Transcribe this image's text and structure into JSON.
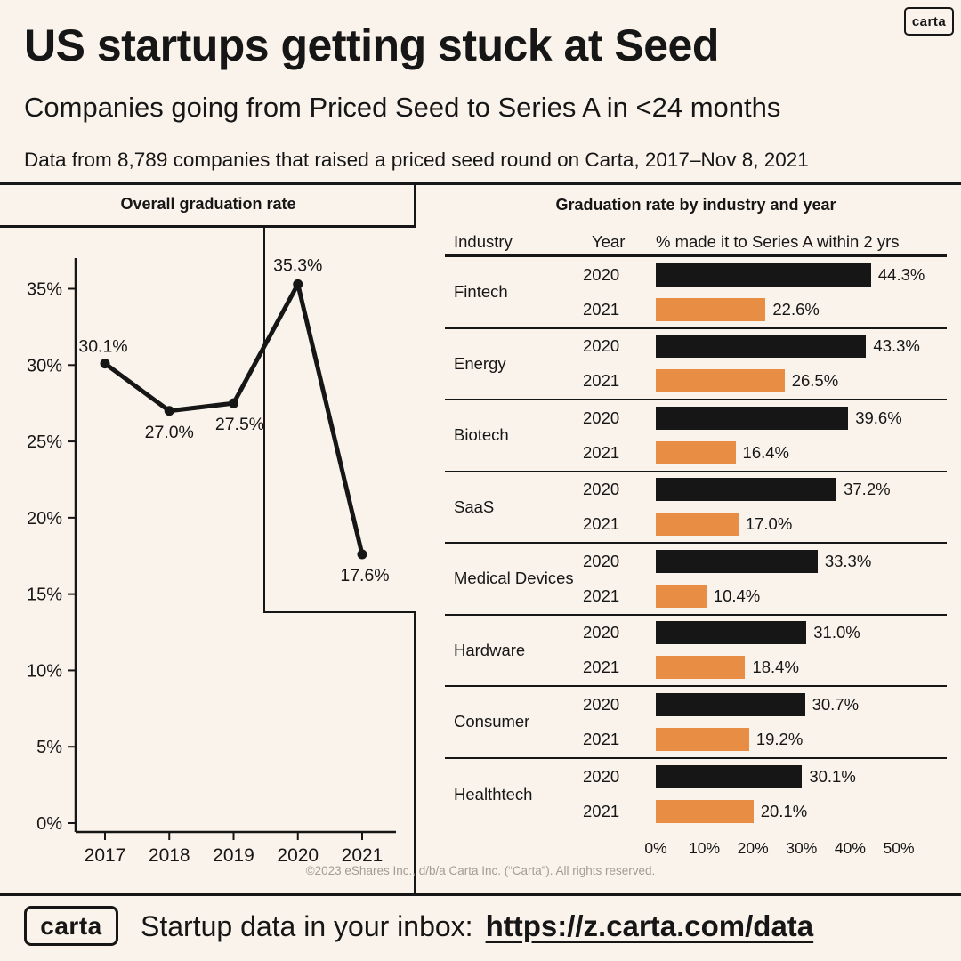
{
  "theme": {
    "background": "#faf3eb",
    "ink": "#161616",
    "orange": "#e78d44",
    "muted_gray": "#a39c92"
  },
  "header": {
    "logo_text": "carta",
    "title": "US startups getting stuck at Seed",
    "subtitle": "Companies going from Priced Seed to Series A in <24 months",
    "note": "Data from 8,789 companies that raised a priced seed round on Carta, 2017–Nov 8, 2021"
  },
  "footer": {
    "copyright": "©2023 eShares Inc., d/b/a Carta Inc. (“Carta”). All rights reserved.",
    "logo_text": "carta",
    "cta": "Startup data in your inbox:",
    "link_text": "https://z.carta.com/data"
  },
  "chart_data": [
    {
      "type": "line",
      "title": "Overall graduation rate",
      "x": [
        "2017",
        "2018",
        "2019",
        "2020",
        "2021"
      ],
      "values": [
        30.1,
        27.0,
        27.5,
        35.3,
        17.6
      ],
      "point_labels": [
        "30.1%",
        "27.0%",
        "27.5%",
        "35.3%",
        "17.6%"
      ],
      "ylim": [
        0,
        37.5
      ],
      "y_ticks": [
        0,
        5,
        10,
        15,
        20,
        25,
        30,
        35
      ],
      "y_tick_labels": [
        "0%",
        "5%",
        "10%",
        "15%",
        "20%",
        "25%",
        "30%",
        "35%"
      ],
      "grid": false,
      "legend": "none",
      "line_color": "#161616"
    },
    {
      "type": "bar",
      "orientation": "horizontal",
      "title": "Graduation rate by industry and year",
      "columns": [
        "Industry",
        "Year",
        "% made it to Series A within 2 yrs"
      ],
      "categories": [
        "Fintech",
        "Energy",
        "Biotech",
        "SaaS",
        "Medical Devices",
        "Hardware",
        "Consumer",
        "Healthtech"
      ],
      "series": [
        {
          "name": "2020",
          "color": "#161616",
          "values": [
            44.3,
            43.3,
            39.6,
            37.2,
            33.3,
            31.0,
            30.7,
            30.1
          ]
        },
        {
          "name": "2021",
          "color": "#e78d44",
          "values": [
            22.6,
            26.5,
            16.4,
            17.0,
            10.4,
            18.4,
            19.2,
            20.1
          ]
        }
      ],
      "value_labels": [
        [
          "44.3%",
          "22.6%"
        ],
        [
          "43.3%",
          "26.5%"
        ],
        [
          "39.6%",
          "16.4%"
        ],
        [
          "37.2%",
          "17.0%"
        ],
        [
          "33.3%",
          "10.4%"
        ],
        [
          "31.0%",
          "18.4%"
        ],
        [
          "30.7%",
          "19.2%"
        ],
        [
          "30.1%",
          "20.1%"
        ]
      ],
      "xlim": [
        0,
        50
      ],
      "x_tick_labels": [
        "0%",
        "10%",
        "20%",
        "30%",
        "40%",
        "50%"
      ]
    }
  ]
}
